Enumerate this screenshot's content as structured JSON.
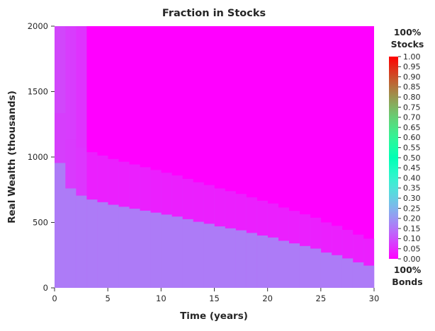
{
  "chart_data": {
    "type": "heatmap",
    "title": "Fraction in Stocks",
    "xlabel": "Time (years)",
    "ylabel": "Real Wealth (thousands)",
    "xlim": [
      0,
      30
    ],
    "ylim": [
      0,
      2000
    ],
    "xticks": [
      0,
      5,
      10,
      15,
      20,
      25,
      30
    ],
    "yticks": [
      0,
      500,
      1000,
      1500,
      2000
    ],
    "grid": false,
    "colormap": "rainbow",
    "value_range": [
      0,
      1
    ],
    "colorbar": {
      "ticks": [
        0.0,
        0.05,
        0.1,
        0.15,
        0.2,
        0.25,
        0.3,
        0.35,
        0.4,
        0.45,
        0.5,
        0.55,
        0.6,
        0.65,
        0.7,
        0.75,
        0.8,
        0.85,
        0.9,
        0.95,
        1.0
      ],
      "tick_labels": [
        "0.00",
        "0.05",
        "0.10",
        "0.15",
        "0.20",
        "0.25",
        "0.30",
        "0.35",
        "0.40",
        "0.45",
        "0.50",
        "0.55",
        "0.60",
        "0.65",
        "0.70",
        "0.75",
        "0.80",
        "0.85",
        "0.90",
        "0.95",
        "1.00"
      ],
      "top_label_line1": "100%",
      "top_label_line2": "Stocks",
      "bottom_label_line1": "100%",
      "bottom_label_line2": "Bonds"
    },
    "high_region_value": 0.16,
    "low_region_value": 0.0,
    "transition_band_value": 0.07,
    "boundary": {
      "years": [
        0,
        1,
        2,
        3,
        4,
        5,
        6,
        7,
        8,
        9,
        10,
        11,
        12,
        13,
        14,
        15,
        16,
        17,
        18,
        19,
        20,
        21,
        22,
        23,
        24,
        25,
        26,
        27,
        28,
        29,
        30
      ],
      "wealth": [
        955,
        760,
        705,
        675,
        655,
        635,
        620,
        605,
        590,
        575,
        560,
        545,
        525,
        505,
        490,
        470,
        455,
        440,
        420,
        400,
        385,
        360,
        340,
        320,
        300,
        270,
        250,
        225,
        195,
        170,
        150
      ]
    },
    "early_column_value": 0.12,
    "early_column_years": [
      0,
      3
    ]
  }
}
